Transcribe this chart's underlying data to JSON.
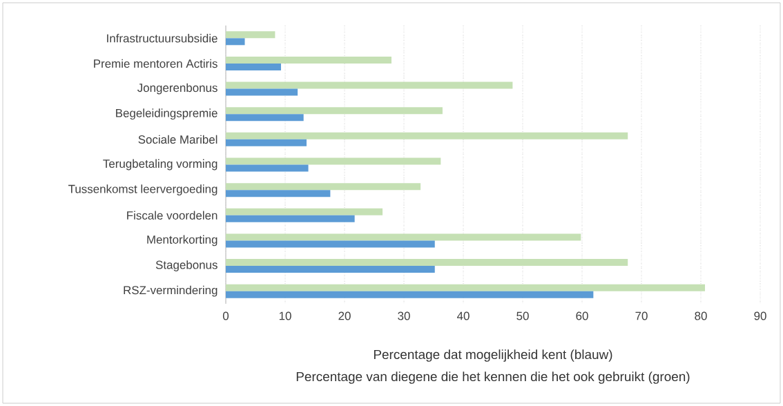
{
  "chart_data": {
    "type": "bar",
    "orientation": "horizontal",
    "categories": [
      "Infrastructuursubsidie",
      "Premie mentoren Actiris",
      "Jongerenbonus",
      "Begeleidingspremie",
      "Sociale Maribel",
      "Terugbetaling vorming",
      "Tussenkomst leervergoeding",
      "Fiscale voordelen",
      "Mentorkorting",
      "Stagebonus",
      "RSZ-vermindering"
    ],
    "series": [
      {
        "color": "#c5e0b4",
        "values": [
          8.3,
          27.9,
          48.3,
          36.5,
          67.7,
          36.2,
          32.8,
          26.4,
          59.8,
          67.7,
          80.7
        ]
      },
      {
        "color": "#5b9bd5",
        "values": [
          3.2,
          9.3,
          12.1,
          13.1,
          13.6,
          13.9,
          17.6,
          21.7,
          35.2,
          35.2,
          61.9
        ]
      }
    ],
    "xlim": [
      0,
      90
    ],
    "xticks": [
      0,
      10,
      20,
      30,
      40,
      50,
      60,
      70,
      80,
      90
    ],
    "grid": "x",
    "xlabel": "Percentage dat mogelijkheid kent (blauw)",
    "annotations": [
      "Percentage van diegene die het kennen die het ook gebruikt (groen)"
    ]
  }
}
